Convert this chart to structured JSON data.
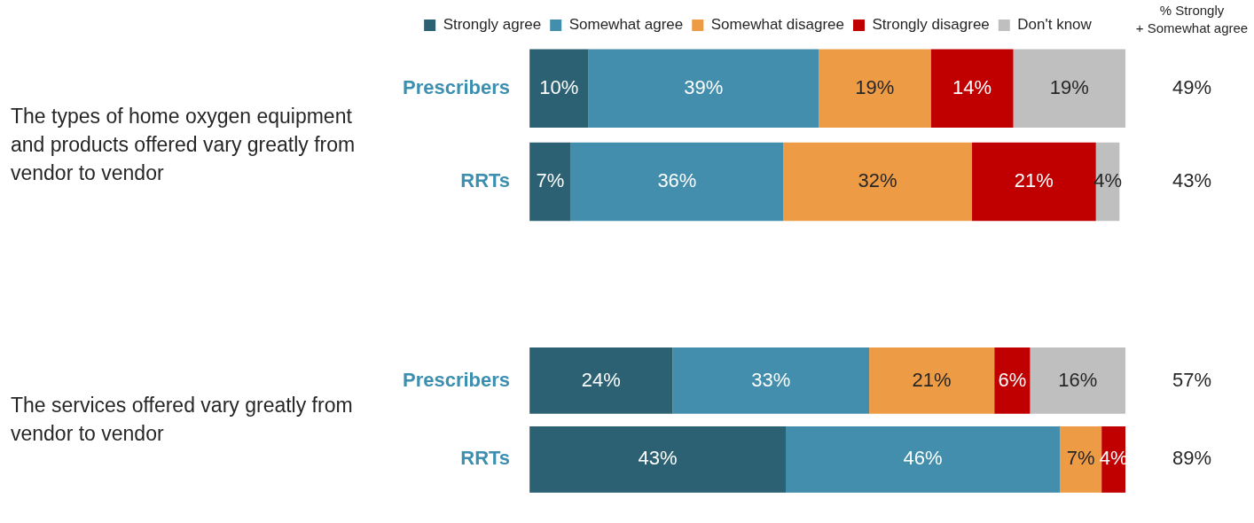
{
  "chart_data": [
    {
      "type": "bar",
      "orientation": "horizontal",
      "stacked": true,
      "title": "The types of home oxygen equipment and products offered vary greatly from vendor to vendor",
      "categories": [
        "Prescribers",
        "RRTs"
      ],
      "xlim": [
        0,
        101
      ],
      "tick_labels": "y",
      "grid": false,
      "legend": "top",
      "series": [
        {
          "name": "Strongly agree",
          "color": "#2b6172",
          "values": [
            10,
            7
          ],
          "value_labels": [
            "10%",
            "7%"
          ]
        },
        {
          "name": "Somewhat agree",
          "color": "#428eac",
          "values": [
            39,
            36
          ],
          "value_labels": [
            "39%",
            "36%"
          ]
        },
        {
          "name": "Somewhat disagree",
          "color": "#ee9b45",
          "values": [
            19,
            32
          ],
          "value_labels": [
            "19%",
            "32%"
          ]
        },
        {
          "name": "Strongly disagree",
          "color": "#c00000",
          "values": [
            14,
            21
          ],
          "value_labels": [
            "14%",
            "21%"
          ]
        },
        {
          "name": "Don't know",
          "color": "#bfbfbf",
          "values": [
            19,
            4
          ],
          "value_labels": [
            "19%",
            "4%"
          ]
        }
      ],
      "annotations": [
        "% Strongly\n+ Somewhat agree",
        "49%",
        "43%"
      ]
    },
    {
      "type": "bar",
      "orientation": "horizontal",
      "stacked": true,
      "title": "The services offered vary greatly from vendor to vendor",
      "categories": [
        "Prescribers",
        "RRTs"
      ],
      "xlim": [
        0,
        100
      ],
      "tick_labels": "y",
      "grid": false,
      "series": [
        {
          "color": "#2b6172",
          "values": [
            24,
            43
          ],
          "value_labels": [
            "24%",
            "43%"
          ]
        },
        {
          "color": "#428eac",
          "values": [
            33,
            46
          ],
          "value_labels": [
            "33%",
            "46%"
          ]
        },
        {
          "color": "#ee9b45",
          "values": [
            21,
            7
          ],
          "value_labels": [
            "21%",
            "7%"
          ]
        },
        {
          "color": "#c00000",
          "values": [
            6,
            4
          ],
          "value_labels": [
            "6%",
            "4%"
          ]
        },
        {
          "color": "#bfbfbf",
          "values": [
            16,
            null
          ],
          "value_labels": [
            "16%",
            null
          ]
        }
      ],
      "annotations": [
        "57%",
        "89%"
      ]
    }
  ]
}
